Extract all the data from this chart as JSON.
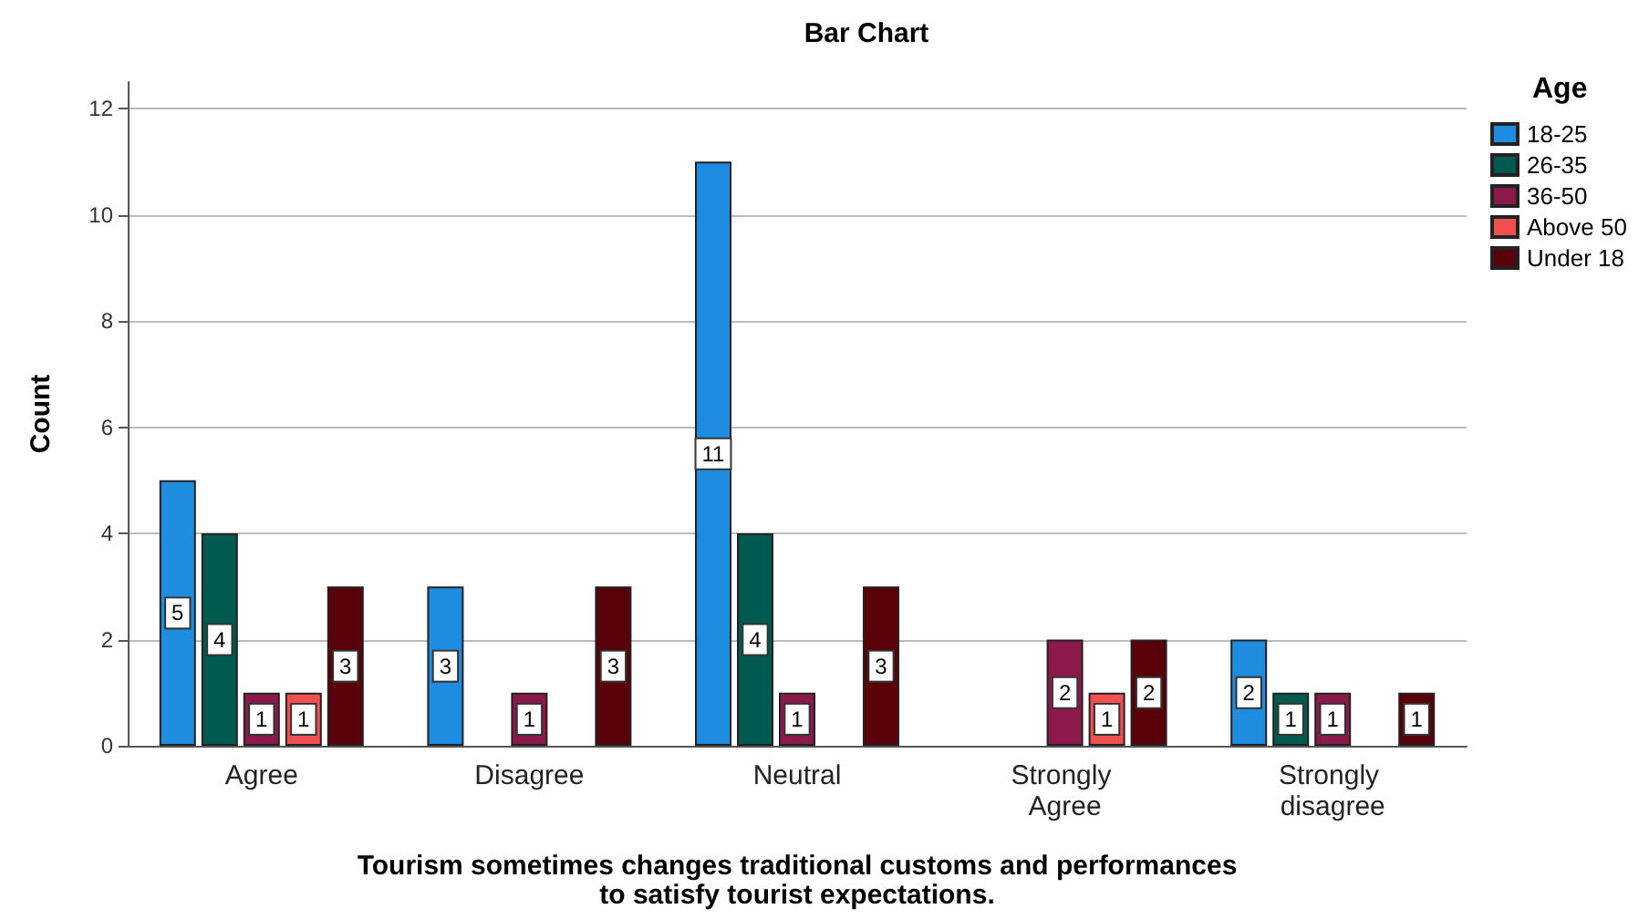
{
  "chart_data": {
    "type": "bar",
    "title": "Bar Chart",
    "xlabel": "Tourism sometimes changes traditional customs and performances\nto satisfy tourist expectations.",
    "ylabel": "Count",
    "legend_title": "Age",
    "categories": [
      "Agree",
      "Disagree",
      "Neutral",
      "Strongly Agree",
      "Strongly disagree"
    ],
    "series": [
      {
        "name": "18-25",
        "color": "#1e8de0",
        "values": [
          5,
          3,
          11,
          null,
          2
        ]
      },
      {
        "name": "26-35",
        "color": "#005a50",
        "values": [
          4,
          null,
          4,
          null,
          1
        ]
      },
      {
        "name": "36-50",
        "color": "#8b1a4a",
        "values": [
          1,
          1,
          1,
          2,
          1
        ]
      },
      {
        "name": "Above 50",
        "color": "#f05050",
        "values": [
          1,
          null,
          null,
          1,
          null
        ]
      },
      {
        "name": "Under 18",
        "color": "#5a0008",
        "values": [
          3,
          3,
          3,
          2,
          1
        ]
      }
    ],
    "ylim": [
      0,
      12.5
    ],
    "yticks": [
      0,
      2,
      4,
      6,
      8,
      10,
      12
    ],
    "grid": "y",
    "legend": "top right",
    "data_labels": true
  }
}
